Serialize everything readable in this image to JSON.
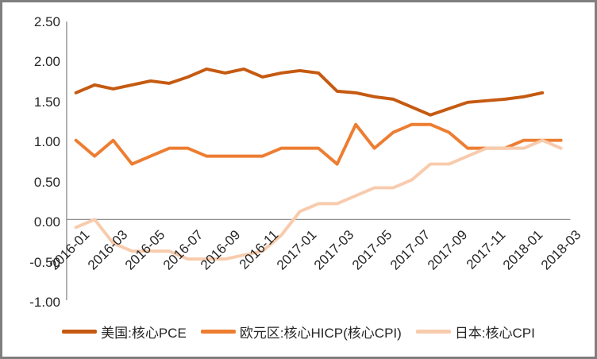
{
  "frame": {
    "background_color": "#ffffff",
    "border_color": "#7f7f7f"
  },
  "chart_data": {
    "type": "line",
    "title": "",
    "xlabel": "",
    "ylabel": "",
    "ylim": [
      -1.0,
      2.5
    ],
    "y_tick_labels": [
      "2.50",
      "2.00",
      "1.50",
      "1.00",
      "0.50",
      "0.00",
      "-0.50",
      "-1.00"
    ],
    "x_tick_labels": [
      "2016-01",
      "2016-03",
      "2016-05",
      "2016-07",
      "2016-09",
      "2016-11",
      "2017-01",
      "2017-03",
      "2017-05",
      "2017-07",
      "2017-09",
      "2017-11",
      "2018-01",
      "2018-03"
    ],
    "x": [
      "2016-01",
      "2016-02",
      "2016-03",
      "2016-04",
      "2016-05",
      "2016-06",
      "2016-07",
      "2016-08",
      "2016-09",
      "2016-10",
      "2016-11",
      "2016-12",
      "2017-01",
      "2017-02",
      "2017-03",
      "2017-04",
      "2017-05",
      "2017-06",
      "2017-07",
      "2017-08",
      "2017-09",
      "2017-10",
      "2017-11",
      "2017-12",
      "2018-01",
      "2018-02",
      "2018-03"
    ],
    "grid": "zero-line-only",
    "legend_position": "bottom",
    "axis_color": "#808080",
    "text_color": "#262626",
    "series": [
      {
        "key": "us-core-pce",
        "name": "美国:核心PCE",
        "color": "#C55A11",
        "values": [
          1.6,
          1.7,
          1.65,
          1.7,
          1.75,
          1.72,
          1.8,
          1.9,
          1.85,
          1.9,
          1.8,
          1.85,
          1.88,
          1.85,
          1.62,
          1.6,
          1.55,
          1.52,
          1.42,
          1.32,
          1.4,
          1.48,
          1.5,
          1.52,
          1.55,
          1.6,
          null
        ]
      },
      {
        "key": "eurozone-core-hicp",
        "name": "欧元区:核心HICP(核心CPI)",
        "color": "#ED7D31",
        "values": [
          1.0,
          0.8,
          1.0,
          0.7,
          0.8,
          0.9,
          0.9,
          0.8,
          0.8,
          0.8,
          0.8,
          0.9,
          0.9,
          0.9,
          0.7,
          1.2,
          0.9,
          1.1,
          1.2,
          1.2,
          1.1,
          0.9,
          0.9,
          0.9,
          1.0,
          1.0,
          1.0
        ]
      },
      {
        "key": "japan-core-cpi",
        "name": "日本:核心CPI",
        "color": "#F8CBAD",
        "values": [
          -0.1,
          0.0,
          -0.3,
          -0.4,
          -0.4,
          -0.4,
          -0.5,
          -0.5,
          -0.5,
          -0.45,
          -0.4,
          -0.2,
          0.1,
          0.2,
          0.2,
          0.3,
          0.4,
          0.4,
          0.5,
          0.7,
          0.7,
          0.8,
          0.9,
          0.9,
          0.9,
          1.0,
          0.9
        ]
      }
    ]
  }
}
